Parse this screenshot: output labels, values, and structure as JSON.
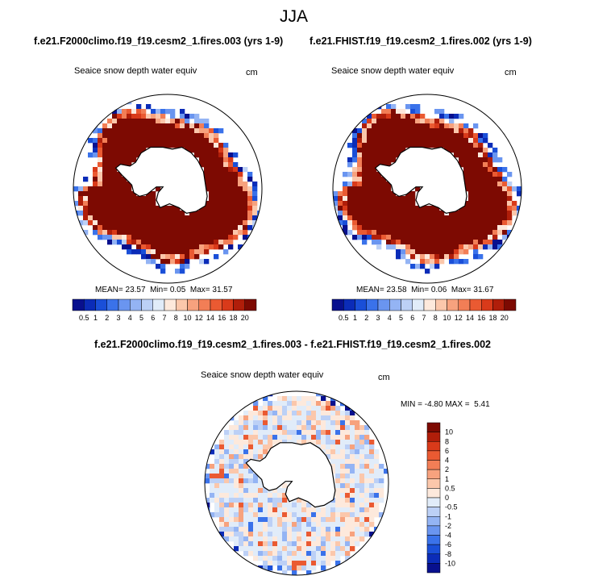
{
  "page": {
    "title": "JJA"
  },
  "panels": [
    {
      "case_title": "f.e21.F2000climo.f19_f19.cesm2_1.fires.003 (yrs 1-9)",
      "variable": "Seaice snow depth water equiv",
      "units": "cm",
      "stats": {
        "mean": "23.57",
        "min": "0.05",
        "max": "31.57"
      }
    },
    {
      "case_title": "f.e21.FHIST.f19_f19.cesm2_1.fires.002 (yrs 1-9)",
      "variable": "Seaice snow depth water equiv",
      "units": "cm",
      "stats": {
        "mean": "23.58",
        "min": "0.06",
        "max": "31.67"
      }
    }
  ],
  "diff_panel": {
    "case_title": "f.e21.F2000climo.f19_f19.cesm2_1.fires.003 - f.e21.FHIST.f19_f19.cesm2_1.fires.002",
    "variable": "Seaice snow depth water equiv",
    "units": "cm",
    "stats": {
      "min": "-4.80",
      "max": "5.41"
    }
  },
  "labels": {
    "mean": "MEAN=",
    "min": "Min=",
    "max": "Max=",
    "diff_min": "MIN =",
    "diff_max": "MAX ="
  },
  "colors": {
    "abs_scale": [
      "#08108e",
      "#0b2cb8",
      "#1a4fd8",
      "#3a72ea",
      "#6a95f0",
      "#94b4f4",
      "#bcd0f6",
      "#e1ecf9",
      "#fde9dc",
      "#fbc7ab",
      "#f7a27e",
      "#f27e56",
      "#ea5a32",
      "#d93a1a",
      "#b01e0a",
      "#7d0a02"
    ],
    "diff_scale": [
      "#08108e",
      "#0b2cb8",
      "#1a4fd8",
      "#3a72ea",
      "#6a95f0",
      "#94b4f4",
      "#bcd0f6",
      "#e1ecf9",
      "#fde9dc",
      "#fbc7ab",
      "#f7a27e",
      "#f27e56",
      "#ea5a32",
      "#d93a1a",
      "#b01e0a",
      "#7d0a02"
    ]
  },
  "chart_data": [
    {
      "type": "heatmap",
      "subtype": "polar-stereographic map",
      "title": "f.e21.F2000climo.f19_f19.cesm2_1.fires.003 (yrs 1-9)",
      "variable": "Seaice snow depth water equiv",
      "units": "cm",
      "region": "Antarctica",
      "season": "JJA",
      "mean": 23.57,
      "min": 0.05,
      "max": 31.57,
      "colorbar_levels": [
        "0.5",
        "1",
        "2",
        "3",
        "4",
        "5",
        "6",
        "7",
        "8",
        "10",
        "12",
        "14",
        "16",
        "18",
        "20"
      ]
    },
    {
      "type": "heatmap",
      "subtype": "polar-stereographic map",
      "title": "f.e21.FHIST.f19_f19.cesm2_1.fires.002 (yrs 1-9)",
      "variable": "Seaice snow depth water equiv",
      "units": "cm",
      "region": "Antarctica",
      "season": "JJA",
      "mean": 23.58,
      "min": 0.06,
      "max": 31.67,
      "colorbar_levels": [
        "0.5",
        "1",
        "2",
        "3",
        "4",
        "5",
        "6",
        "7",
        "8",
        "10",
        "12",
        "14",
        "16",
        "18",
        "20"
      ]
    },
    {
      "type": "heatmap",
      "subtype": "polar-stereographic difference map",
      "title": "f.e21.F2000climo.f19_f19.cesm2_1.fires.003 - f.e21.FHIST.f19_f19.cesm2_1.fires.002",
      "variable": "Seaice snow depth water equiv",
      "units": "cm",
      "region": "Antarctica",
      "season": "JJA",
      "min": -4.8,
      "max": 5.41,
      "colorbar_levels": [
        "10",
        "8",
        "6",
        "4",
        "2",
        "1",
        "0.5",
        "0",
        "-0.5",
        "-1",
        "-2",
        "-4",
        "-6",
        "-8",
        "-10"
      ]
    }
  ]
}
